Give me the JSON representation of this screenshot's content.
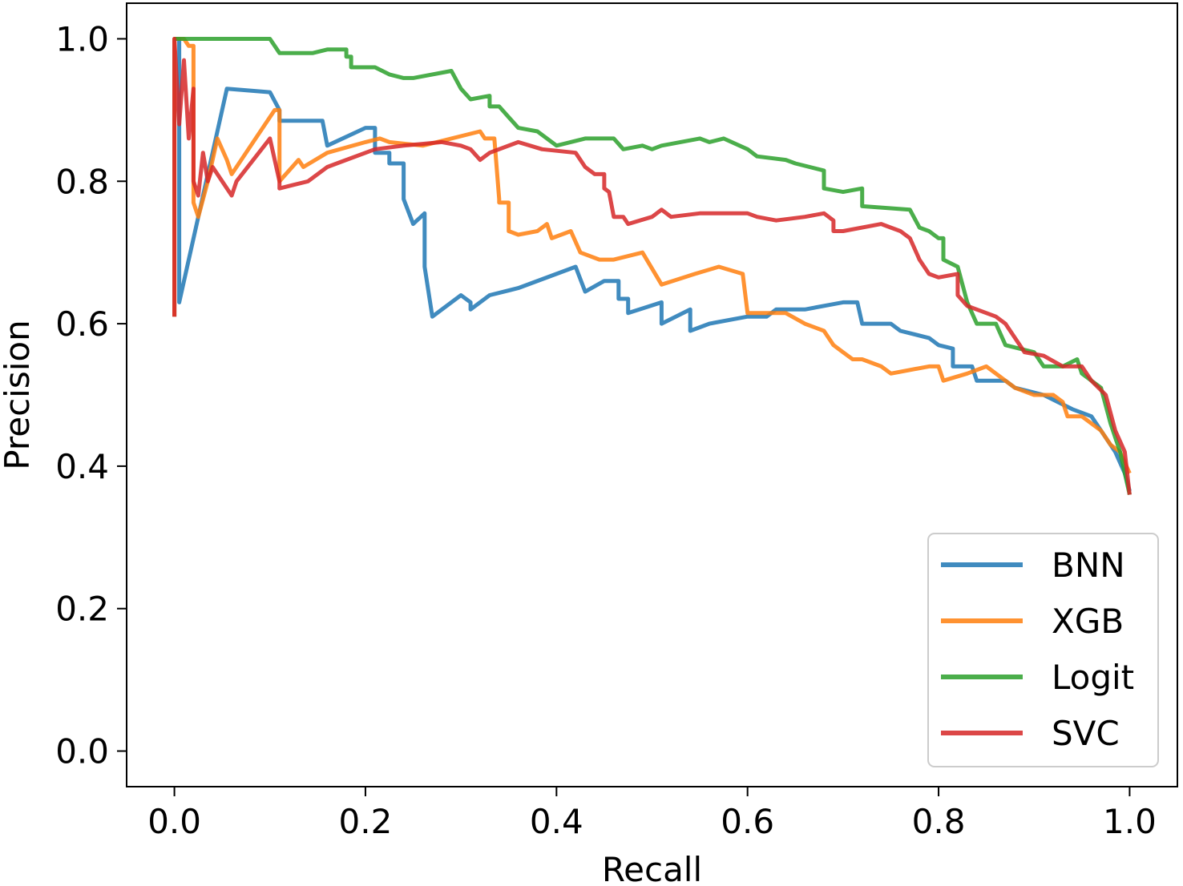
{
  "chart_data": {
    "type": "line",
    "title": "",
    "xlabel": "Recall",
    "ylabel": "Precision",
    "xlim": [
      -0.05,
      1.05
    ],
    "ylim": [
      -0.05,
      1.05
    ],
    "xticks": [
      0.0,
      0.2,
      0.4,
      0.6,
      0.8,
      1.0
    ],
    "xtick_labels": [
      "0.0",
      "0.2",
      "0.4",
      "0.6",
      "0.8",
      "1.0"
    ],
    "yticks": [
      0.0,
      0.2,
      0.4,
      0.6,
      0.8,
      1.0
    ],
    "ytick_labels": [
      "0.0",
      "0.2",
      "0.4",
      "0.6",
      "0.8",
      "1.0"
    ],
    "grid": false,
    "legend_position": "lower-right",
    "series": [
      {
        "name": "BNN",
        "color": "#1f77b4",
        "points": [
          [
            0.0,
            0.61
          ],
          [
            0.0,
            1.0
          ],
          [
            0.005,
            1.0
          ],
          [
            0.005,
            0.63
          ],
          [
            0.055,
            0.93
          ],
          [
            0.1,
            0.925
          ],
          [
            0.11,
            0.9
          ],
          [
            0.11,
            0.885
          ],
          [
            0.155,
            0.885
          ],
          [
            0.16,
            0.85
          ],
          [
            0.2,
            0.875
          ],
          [
            0.21,
            0.875
          ],
          [
            0.21,
            0.84
          ],
          [
            0.225,
            0.84
          ],
          [
            0.225,
            0.825
          ],
          [
            0.24,
            0.825
          ],
          [
            0.24,
            0.775
          ],
          [
            0.25,
            0.74
          ],
          [
            0.262,
            0.755
          ],
          [
            0.262,
            0.68
          ],
          [
            0.27,
            0.61
          ],
          [
            0.3,
            0.64
          ],
          [
            0.31,
            0.63
          ],
          [
            0.31,
            0.62
          ],
          [
            0.33,
            0.64
          ],
          [
            0.36,
            0.65
          ],
          [
            0.42,
            0.68
          ],
          [
            0.43,
            0.645
          ],
          [
            0.45,
            0.66
          ],
          [
            0.465,
            0.66
          ],
          [
            0.465,
            0.635
          ],
          [
            0.475,
            0.635
          ],
          [
            0.475,
            0.615
          ],
          [
            0.51,
            0.63
          ],
          [
            0.51,
            0.6
          ],
          [
            0.54,
            0.62
          ],
          [
            0.54,
            0.59
          ],
          [
            0.56,
            0.6
          ],
          [
            0.6,
            0.61
          ],
          [
            0.62,
            0.61
          ],
          [
            0.63,
            0.62
          ],
          [
            0.66,
            0.62
          ],
          [
            0.7,
            0.63
          ],
          [
            0.715,
            0.63
          ],
          [
            0.72,
            0.6
          ],
          [
            0.75,
            0.6
          ],
          [
            0.76,
            0.59
          ],
          [
            0.79,
            0.58
          ],
          [
            0.8,
            0.57
          ],
          [
            0.815,
            0.565
          ],
          [
            0.815,
            0.54
          ],
          [
            0.835,
            0.54
          ],
          [
            0.84,
            0.52
          ],
          [
            0.87,
            0.52
          ],
          [
            0.88,
            0.51
          ],
          [
            0.91,
            0.5
          ],
          [
            0.94,
            0.48
          ],
          [
            0.96,
            0.47
          ],
          [
            0.97,
            0.45
          ],
          [
            0.985,
            0.42
          ],
          [
            0.995,
            0.39
          ],
          [
            1.0,
            0.365
          ]
        ]
      },
      {
        "name": "XGB",
        "color": "#ff7f0e",
        "points": [
          [
            0.0,
            0.61
          ],
          [
            0.0,
            1.0
          ],
          [
            0.01,
            1.0
          ],
          [
            0.015,
            0.99
          ],
          [
            0.02,
            0.99
          ],
          [
            0.02,
            0.77
          ],
          [
            0.025,
            0.75
          ],
          [
            0.035,
            0.8
          ],
          [
            0.045,
            0.86
          ],
          [
            0.055,
            0.83
          ],
          [
            0.06,
            0.81
          ],
          [
            0.085,
            0.86
          ],
          [
            0.105,
            0.9
          ],
          [
            0.11,
            0.9
          ],
          [
            0.11,
            0.8
          ],
          [
            0.13,
            0.83
          ],
          [
            0.135,
            0.82
          ],
          [
            0.16,
            0.84
          ],
          [
            0.2,
            0.855
          ],
          [
            0.215,
            0.86
          ],
          [
            0.225,
            0.855
          ],
          [
            0.26,
            0.85
          ],
          [
            0.32,
            0.87
          ],
          [
            0.325,
            0.86
          ],
          [
            0.335,
            0.86
          ],
          [
            0.34,
            0.775
          ],
          [
            0.34,
            0.77
          ],
          [
            0.35,
            0.77
          ],
          [
            0.35,
            0.73
          ],
          [
            0.36,
            0.725
          ],
          [
            0.38,
            0.73
          ],
          [
            0.39,
            0.74
          ],
          [
            0.395,
            0.72
          ],
          [
            0.415,
            0.73
          ],
          [
            0.425,
            0.7
          ],
          [
            0.445,
            0.69
          ],
          [
            0.46,
            0.69
          ],
          [
            0.49,
            0.7
          ],
          [
            0.51,
            0.655
          ],
          [
            0.545,
            0.67
          ],
          [
            0.57,
            0.68
          ],
          [
            0.595,
            0.67
          ],
          [
            0.6,
            0.615
          ],
          [
            0.64,
            0.615
          ],
          [
            0.66,
            0.6
          ],
          [
            0.68,
            0.59
          ],
          [
            0.69,
            0.57
          ],
          [
            0.7,
            0.56
          ],
          [
            0.71,
            0.55
          ],
          [
            0.72,
            0.55
          ],
          [
            0.74,
            0.54
          ],
          [
            0.75,
            0.53
          ],
          [
            0.79,
            0.54
          ],
          [
            0.8,
            0.54
          ],
          [
            0.805,
            0.52
          ],
          [
            0.83,
            0.53
          ],
          [
            0.85,
            0.54
          ],
          [
            0.87,
            0.52
          ],
          [
            0.88,
            0.51
          ],
          [
            0.9,
            0.5
          ],
          [
            0.92,
            0.5
          ],
          [
            0.93,
            0.49
          ],
          [
            0.935,
            0.47
          ],
          [
            0.95,
            0.47
          ],
          [
            0.97,
            0.45
          ],
          [
            0.98,
            0.43
          ],
          [
            0.99,
            0.42
          ],
          [
            1.0,
            0.39
          ]
        ]
      },
      {
        "name": "Logit",
        "color": "#2ca02c",
        "points": [
          [
            0.0,
            1.0
          ],
          [
            0.1,
            1.0
          ],
          [
            0.11,
            0.98
          ],
          [
            0.145,
            0.98
          ],
          [
            0.16,
            0.985
          ],
          [
            0.18,
            0.985
          ],
          [
            0.18,
            0.975
          ],
          [
            0.185,
            0.975
          ],
          [
            0.185,
            0.96
          ],
          [
            0.21,
            0.96
          ],
          [
            0.225,
            0.95
          ],
          [
            0.24,
            0.945
          ],
          [
            0.25,
            0.945
          ],
          [
            0.29,
            0.955
          ],
          [
            0.3,
            0.93
          ],
          [
            0.31,
            0.915
          ],
          [
            0.33,
            0.92
          ],
          [
            0.33,
            0.905
          ],
          [
            0.34,
            0.905
          ],
          [
            0.35,
            0.89
          ],
          [
            0.36,
            0.875
          ],
          [
            0.38,
            0.87
          ],
          [
            0.39,
            0.86
          ],
          [
            0.4,
            0.85
          ],
          [
            0.43,
            0.86
          ],
          [
            0.46,
            0.86
          ],
          [
            0.47,
            0.845
          ],
          [
            0.49,
            0.85
          ],
          [
            0.5,
            0.845
          ],
          [
            0.51,
            0.85
          ],
          [
            0.55,
            0.86
          ],
          [
            0.56,
            0.855
          ],
          [
            0.575,
            0.86
          ],
          [
            0.6,
            0.845
          ],
          [
            0.61,
            0.835
          ],
          [
            0.64,
            0.83
          ],
          [
            0.65,
            0.825
          ],
          [
            0.68,
            0.815
          ],
          [
            0.68,
            0.79
          ],
          [
            0.7,
            0.785
          ],
          [
            0.72,
            0.79
          ],
          [
            0.72,
            0.765
          ],
          [
            0.77,
            0.76
          ],
          [
            0.78,
            0.735
          ],
          [
            0.79,
            0.73
          ],
          [
            0.8,
            0.72
          ],
          [
            0.805,
            0.72
          ],
          [
            0.805,
            0.69
          ],
          [
            0.82,
            0.68
          ],
          [
            0.83,
            0.63
          ],
          [
            0.84,
            0.6
          ],
          [
            0.86,
            0.6
          ],
          [
            0.87,
            0.57
          ],
          [
            0.9,
            0.56
          ],
          [
            0.91,
            0.54
          ],
          [
            0.93,
            0.54
          ],
          [
            0.945,
            0.55
          ],
          [
            0.95,
            0.53
          ],
          [
            0.97,
            0.51
          ],
          [
            0.98,
            0.46
          ],
          [
            0.99,
            0.42
          ],
          [
            1.0,
            0.36
          ]
        ]
      },
      {
        "name": "SVC",
        "color": "#d62728",
        "points": [
          [
            0.0,
            0.61
          ],
          [
            0.0,
            1.0
          ],
          [
            0.005,
            0.88
          ],
          [
            0.01,
            0.97
          ],
          [
            0.015,
            0.86
          ],
          [
            0.02,
            0.93
          ],
          [
            0.02,
            0.8
          ],
          [
            0.025,
            0.78
          ],
          [
            0.03,
            0.84
          ],
          [
            0.035,
            0.8
          ],
          [
            0.04,
            0.82
          ],
          [
            0.05,
            0.8
          ],
          [
            0.06,
            0.78
          ],
          [
            0.065,
            0.8
          ],
          [
            0.1,
            0.86
          ],
          [
            0.11,
            0.8
          ],
          [
            0.11,
            0.79
          ],
          [
            0.125,
            0.795
          ],
          [
            0.14,
            0.8
          ],
          [
            0.16,
            0.82
          ],
          [
            0.17,
            0.825
          ],
          [
            0.21,
            0.845
          ],
          [
            0.24,
            0.85
          ],
          [
            0.28,
            0.855
          ],
          [
            0.3,
            0.85
          ],
          [
            0.31,
            0.845
          ],
          [
            0.32,
            0.83
          ],
          [
            0.33,
            0.84
          ],
          [
            0.36,
            0.855
          ],
          [
            0.385,
            0.845
          ],
          [
            0.42,
            0.84
          ],
          [
            0.43,
            0.82
          ],
          [
            0.44,
            0.81
          ],
          [
            0.45,
            0.81
          ],
          [
            0.45,
            0.79
          ],
          [
            0.455,
            0.785
          ],
          [
            0.46,
            0.75
          ],
          [
            0.47,
            0.75
          ],
          [
            0.475,
            0.74
          ],
          [
            0.5,
            0.75
          ],
          [
            0.51,
            0.76
          ],
          [
            0.52,
            0.75
          ],
          [
            0.55,
            0.755
          ],
          [
            0.575,
            0.755
          ],
          [
            0.6,
            0.755
          ],
          [
            0.61,
            0.75
          ],
          [
            0.63,
            0.745
          ],
          [
            0.66,
            0.75
          ],
          [
            0.68,
            0.755
          ],
          [
            0.69,
            0.745
          ],
          [
            0.69,
            0.73
          ],
          [
            0.7,
            0.73
          ],
          [
            0.74,
            0.74
          ],
          [
            0.75,
            0.735
          ],
          [
            0.76,
            0.73
          ],
          [
            0.77,
            0.72
          ],
          [
            0.78,
            0.69
          ],
          [
            0.79,
            0.67
          ],
          [
            0.8,
            0.665
          ],
          [
            0.82,
            0.67
          ],
          [
            0.82,
            0.64
          ],
          [
            0.83,
            0.625
          ],
          [
            0.84,
            0.62
          ],
          [
            0.86,
            0.61
          ],
          [
            0.87,
            0.6
          ],
          [
            0.88,
            0.58
          ],
          [
            0.89,
            0.56
          ],
          [
            0.91,
            0.555
          ],
          [
            0.93,
            0.54
          ],
          [
            0.95,
            0.54
          ],
          [
            0.96,
            0.52
          ],
          [
            0.975,
            0.5
          ],
          [
            0.985,
            0.45
          ],
          [
            0.995,
            0.42
          ],
          [
            1.0,
            0.36
          ]
        ]
      }
    ]
  }
}
